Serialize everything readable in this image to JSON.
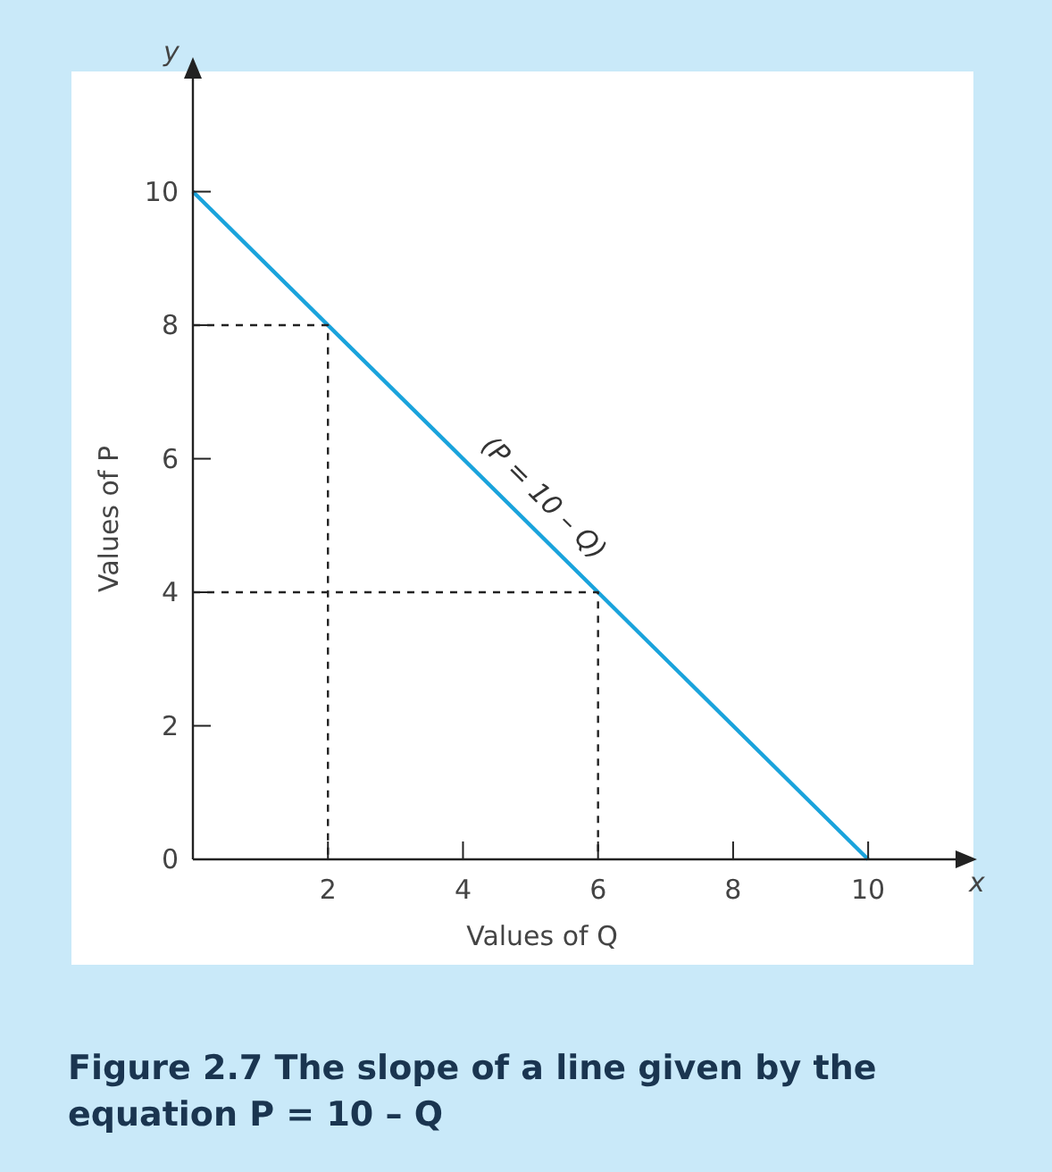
{
  "chart_data": {
    "type": "line",
    "title": "Figure 2.7  The slope of a line given by the equation P = 10 – Q",
    "xlabel": "Values of Q",
    "ylabel": "Values of P",
    "x": [
      0,
      10
    ],
    "series": [
      {
        "color": "#1aa3dc",
        "values": [
          10,
          0
        ]
      },
      {
        "type": "line",
        "line_style": "dashed",
        "color": "#222222",
        "x": [
          0,
          2,
          2
        ],
        "values": [
          8,
          8,
          0
        ]
      },
      {
        "type": "line",
        "line_style": "dashed",
        "color": "#222222",
        "x": [
          0,
          6,
          6
        ],
        "values": [
          4,
          4,
          0
        ]
      }
    ],
    "xlim": [
      0,
      11.4
    ],
    "ylim": [
      0,
      11.8
    ],
    "xticks": [
      2,
      4,
      6,
      8,
      10
    ],
    "yticks": [
      0,
      2,
      4,
      6,
      8,
      10
    ],
    "annotations": [
      "y",
      "x",
      "(P = 10 – Q)"
    ],
    "grid": false,
    "marker": "none",
    "line_style": "solid"
  }
}
